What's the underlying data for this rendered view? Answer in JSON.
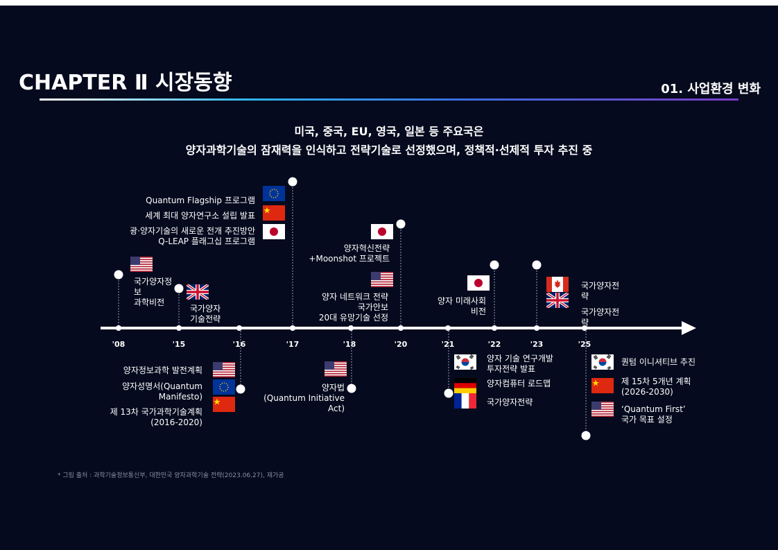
{
  "header": {
    "title": "CHAPTER Ⅱ 시장동향",
    "section": "01. 사업환경 변화"
  },
  "subtitle": [
    "미국, 중국, EU, 영국, 일본 등 주요국은",
    "양자과학기술의 잠재력을 인식하고 전략기술로 선정했으며, 정책적·선제적 투자 추진 중"
  ],
  "timeline": {
    "years": [
      "'08",
      "'15",
      "'16",
      "'17",
      "'18",
      "'20",
      "'21",
      "'22",
      "'23",
      "'25"
    ],
    "events": [
      {
        "labels": [
          "국가양자정\n보\n과학비전"
        ]
      },
      {
        "labels": [
          "국가양자\n기술전략"
        ]
      },
      {
        "labels": [
          "양자정보과학 발전계획",
          "양자성명서(Quantum\nManifesto)",
          "제 13차 국가과학기술계획\n(2016-2020)"
        ]
      },
      {
        "labels": [
          "Quantum Flagship 프로그램",
          "세계 최대 양자연구소 설립 발표",
          "광·양자기술의 새로운 전개 추진방안\nQ-LEAP 플래그십 프로그램"
        ]
      },
      {
        "labels": [
          "양자법\n(Quantum Initiative\nAct)"
        ]
      },
      {
        "labels": [
          "양자혁신전략\n+Moonshot 프로젝트",
          "양자 네트워크 전략\n국가안보\n20대 유망기술 선정"
        ]
      },
      {
        "labels": [
          "양자 기술 연구개발\n투자전략 발표",
          "양자컴퓨터 로드맵",
          "국가양자전략"
        ]
      },
      {
        "labels": [
          "양자 미래사회\n비전"
        ]
      },
      {
        "labels": [
          "국가양자전\n략",
          "국가양자전\n략"
        ]
      },
      {
        "labels": [
          "퀀텀 이니셔티브 추진",
          "제 15차 5개년 계획\n(2026-2030)",
          "‘Quantum First’\n국가 목표 설정"
        ]
      }
    ]
  },
  "source": "* 그림 출처 :  과학기술정보통신부, 대한민국 양자과학기술 전략(2023.06.27), 재가공"
}
